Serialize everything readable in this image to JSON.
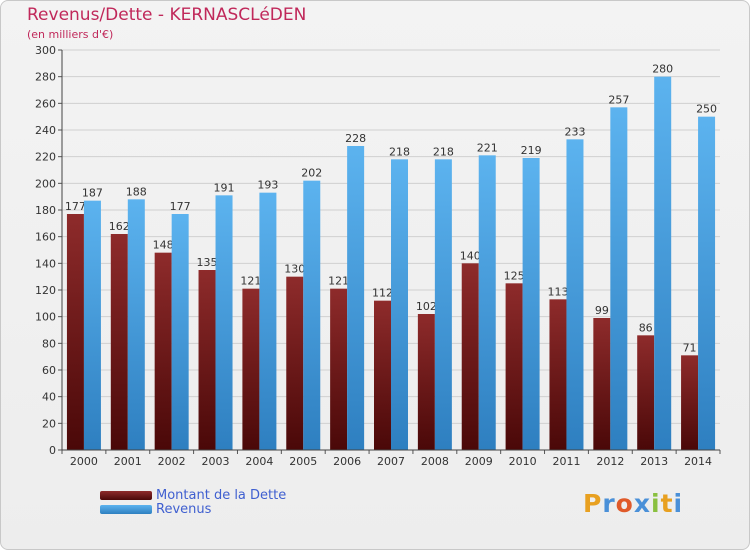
{
  "chart_data": {
    "type": "bar",
    "title": "Revenus/Dette - KERNASCLéDEN",
    "subtitle": "(en milliers d'€)",
    "categories": [
      "2000",
      "2001",
      "2002",
      "2003",
      "2004",
      "2005",
      "2006",
      "2007",
      "2008",
      "2009",
      "2010",
      "2011",
      "2012",
      "2013",
      "2014"
    ],
    "series": [
      {
        "name": "Montant de la Dette",
        "color": "#7a1a1a",
        "values": [
          177,
          162,
          148,
          135,
          121,
          130,
          121,
          112,
          102,
          140,
          125,
          113,
          99,
          86,
          71
        ]
      },
      {
        "name": "Revenus",
        "color": "#4ba3e4",
        "values": [
          187,
          188,
          177,
          191,
          193,
          202,
          228,
          218,
          218,
          221,
          219,
          233,
          257,
          280,
          250
        ]
      }
    ],
    "ylim": [
      0,
      300
    ],
    "ytick_step": 20,
    "grid": true,
    "legend_position": "bottom-left"
  },
  "logo": {
    "text": "Proxiti",
    "colors": [
      "#e8a020",
      "#4a90d8",
      "#e05a2a",
      "#4a90d8",
      "#8ac040",
      "#e8a020",
      "#4a90d8"
    ]
  }
}
